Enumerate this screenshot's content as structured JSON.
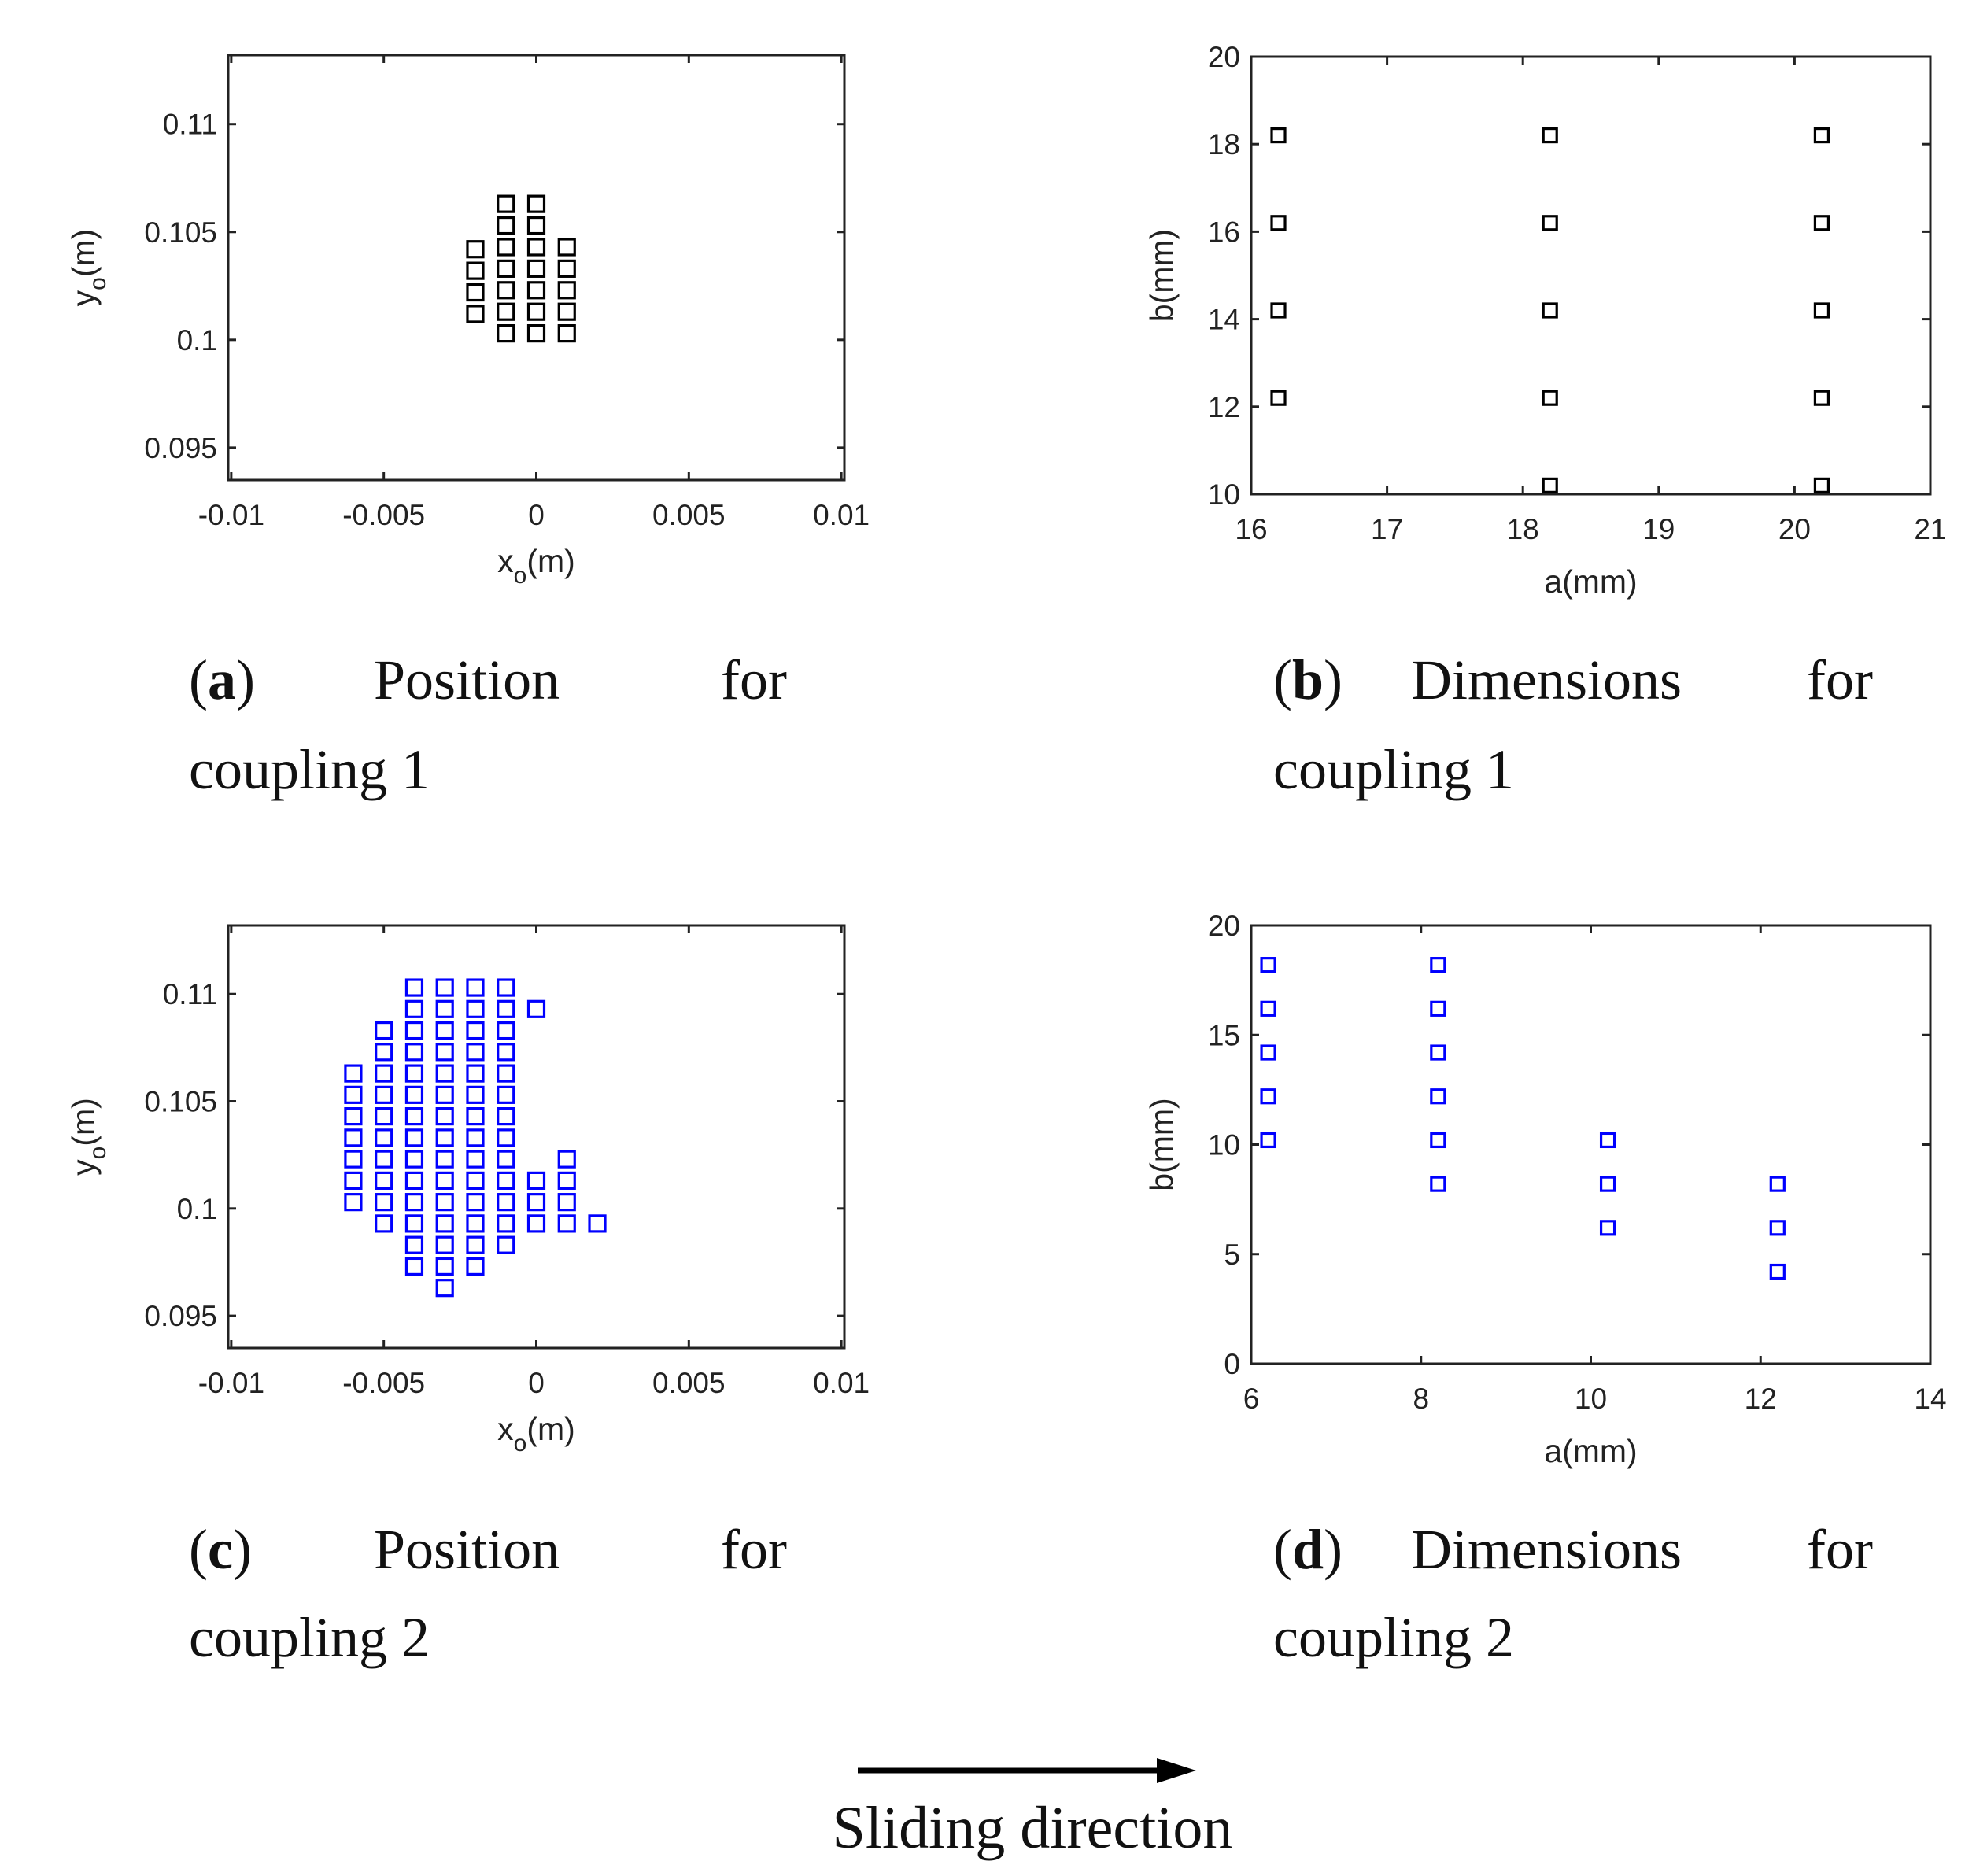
{
  "chart_data": [
    {
      "id": "a",
      "type": "scatter",
      "title": "",
      "xlabel": "x",
      "xlabel_sub": "o",
      "xlabel_unit": "(m)",
      "ylabel": "y",
      "ylabel_sub": "o",
      "ylabel_unit": "(m)",
      "xlim": [
        -0.0101,
        0.0101
      ],
      "ylim": [
        0.0935,
        0.1132
      ],
      "xticks": [
        -0.01,
        -0.005,
        0,
        0.005,
        0.01
      ],
      "xtick_labels": [
        "-0.01",
        "-0.005",
        "0",
        "0.005",
        "0.01"
      ],
      "yticks": [
        0.095,
        0.1,
        0.105,
        0.11
      ],
      "ytick_labels": [
        "0.095",
        "0.1",
        "0.105",
        "0.11"
      ],
      "marker": "square",
      "color": "#000000",
      "caption_label": "a",
      "caption_rest": "Position for coupling 1",
      "points": [
        [
          -0.002,
          0.1012
        ],
        [
          -0.002,
          0.1022
        ],
        [
          -0.002,
          0.1032
        ],
        [
          -0.002,
          0.1042
        ],
        [
          -0.001,
          0.1003
        ],
        [
          -0.001,
          0.1013
        ],
        [
          -0.001,
          0.1023
        ],
        [
          -0.001,
          0.1033
        ],
        [
          -0.001,
          0.1043
        ],
        [
          -0.001,
          0.1053
        ],
        [
          -0.001,
          0.1063
        ],
        [
          0.0,
          0.1003
        ],
        [
          0.0,
          0.1013
        ],
        [
          0.0,
          0.1023
        ],
        [
          0.0,
          0.1033
        ],
        [
          0.0,
          0.1043
        ],
        [
          0.0,
          0.1053
        ],
        [
          0.0,
          0.1063
        ],
        [
          0.001,
          0.1003
        ],
        [
          0.001,
          0.1013
        ],
        [
          0.001,
          0.1023
        ],
        [
          0.001,
          0.1033
        ],
        [
          0.001,
          0.1043
        ]
      ]
    },
    {
      "id": "b",
      "type": "scatter",
      "title": "",
      "xlabel": "a(mm)",
      "ylabel": "b(mm)",
      "xlim": [
        16,
        21
      ],
      "ylim": [
        10,
        20
      ],
      "xticks": [
        16,
        17,
        18,
        19,
        20,
        21
      ],
      "xtick_labels": [
        "16",
        "17",
        "18",
        "19",
        "20",
        "21"
      ],
      "yticks": [
        10,
        12,
        14,
        16,
        18,
        20
      ],
      "ytick_labels": [
        "10",
        "12",
        "14",
        "16",
        "18",
        "20"
      ],
      "marker": "square",
      "color": "#000000",
      "caption_label": "b",
      "caption_rest": "Dimensions for coupling 1",
      "points": [
        [
          16.2,
          12.2
        ],
        [
          16.2,
          14.2
        ],
        [
          16.2,
          16.2
        ],
        [
          16.2,
          18.2
        ],
        [
          18.2,
          10.2
        ],
        [
          18.2,
          12.2
        ],
        [
          18.2,
          14.2
        ],
        [
          18.2,
          16.2
        ],
        [
          18.2,
          18.2
        ],
        [
          20.2,
          10.2
        ],
        [
          20.2,
          12.2
        ],
        [
          20.2,
          14.2
        ],
        [
          20.2,
          16.2
        ],
        [
          20.2,
          18.2
        ]
      ]
    },
    {
      "id": "c",
      "type": "scatter",
      "title": "",
      "xlabel": "x",
      "xlabel_sub": "o",
      "xlabel_unit": "(m)",
      "ylabel": "y",
      "ylabel_sub": "o",
      "ylabel_unit": "(m)",
      "xlim": [
        -0.0101,
        0.0101
      ],
      "ylim": [
        0.0935,
        0.1132
      ],
      "xticks": [
        -0.01,
        -0.005,
        0,
        0.005,
        0.01
      ],
      "xtick_labels": [
        "-0.01",
        "-0.005",
        "0",
        "0.005",
        "0.01"
      ],
      "yticks": [
        0.095,
        0.1,
        0.105,
        0.11
      ],
      "ytick_labels": [
        "0.095",
        "0.1",
        "0.105",
        "0.11"
      ],
      "marker": "square",
      "color": "#0000ff",
      "caption_label": "c",
      "caption_rest": "Position for coupling 2",
      "points": [
        [
          -0.006,
          0.1003
        ],
        [
          -0.006,
          0.1013
        ],
        [
          -0.006,
          0.1023
        ],
        [
          -0.006,
          0.1033
        ],
        [
          -0.006,
          0.1043
        ],
        [
          -0.006,
          0.1053
        ],
        [
          -0.006,
          0.1063
        ],
        [
          -0.005,
          0.0993
        ],
        [
          -0.005,
          0.1003
        ],
        [
          -0.005,
          0.1013
        ],
        [
          -0.005,
          0.1023
        ],
        [
          -0.005,
          0.1033
        ],
        [
          -0.005,
          0.1043
        ],
        [
          -0.005,
          0.1053
        ],
        [
          -0.005,
          0.1063
        ],
        [
          -0.005,
          0.1073
        ],
        [
          -0.005,
          0.1083
        ],
        [
          -0.004,
          0.0973
        ],
        [
          -0.004,
          0.0983
        ],
        [
          -0.004,
          0.0993
        ],
        [
          -0.004,
          0.1003
        ],
        [
          -0.004,
          0.1013
        ],
        [
          -0.004,
          0.1023
        ],
        [
          -0.004,
          0.1033
        ],
        [
          -0.004,
          0.1043
        ],
        [
          -0.004,
          0.1053
        ],
        [
          -0.004,
          0.1063
        ],
        [
          -0.004,
          0.1073
        ],
        [
          -0.004,
          0.1083
        ],
        [
          -0.004,
          0.1093
        ],
        [
          -0.004,
          0.1103
        ],
        [
          -0.003,
          0.0963
        ],
        [
          -0.003,
          0.0973
        ],
        [
          -0.003,
          0.0983
        ],
        [
          -0.003,
          0.0993
        ],
        [
          -0.003,
          0.1003
        ],
        [
          -0.003,
          0.1013
        ],
        [
          -0.003,
          0.1023
        ],
        [
          -0.003,
          0.1033
        ],
        [
          -0.003,
          0.1043
        ],
        [
          -0.003,
          0.1053
        ],
        [
          -0.003,
          0.1063
        ],
        [
          -0.003,
          0.1073
        ],
        [
          -0.003,
          0.1083
        ],
        [
          -0.003,
          0.1093
        ],
        [
          -0.003,
          0.1103
        ],
        [
          -0.002,
          0.0973
        ],
        [
          -0.002,
          0.0983
        ],
        [
          -0.002,
          0.0993
        ],
        [
          -0.002,
          0.1003
        ],
        [
          -0.002,
          0.1013
        ],
        [
          -0.002,
          0.1023
        ],
        [
          -0.002,
          0.1033
        ],
        [
          -0.002,
          0.1043
        ],
        [
          -0.002,
          0.1053
        ],
        [
          -0.002,
          0.1063
        ],
        [
          -0.002,
          0.1073
        ],
        [
          -0.002,
          0.1083
        ],
        [
          -0.002,
          0.1093
        ],
        [
          -0.002,
          0.1103
        ],
        [
          -0.001,
          0.0983
        ],
        [
          -0.001,
          0.0993
        ],
        [
          -0.001,
          0.1003
        ],
        [
          -0.001,
          0.1013
        ],
        [
          -0.001,
          0.1023
        ],
        [
          -0.001,
          0.1033
        ],
        [
          -0.001,
          0.1043
        ],
        [
          -0.001,
          0.1053
        ],
        [
          -0.001,
          0.1063
        ],
        [
          -0.001,
          0.1073
        ],
        [
          -0.001,
          0.1083
        ],
        [
          -0.001,
          0.1093
        ],
        [
          -0.001,
          0.1103
        ],
        [
          0.0,
          0.0993
        ],
        [
          0.0,
          0.1003
        ],
        [
          0.0,
          0.1013
        ],
        [
          0.0,
          0.1093
        ],
        [
          0.001,
          0.0993
        ],
        [
          0.001,
          0.1003
        ],
        [
          0.001,
          0.1013
        ],
        [
          0.001,
          0.1023
        ],
        [
          0.002,
          0.0993
        ]
      ]
    },
    {
      "id": "d",
      "type": "scatter",
      "title": "",
      "xlabel": "a(mm)",
      "ylabel": "b(mm)",
      "xlim": [
        6,
        14
      ],
      "ylim": [
        0,
        20
      ],
      "xticks": [
        6,
        8,
        10,
        12,
        14
      ],
      "xtick_labels": [
        "6",
        "8",
        "10",
        "12",
        "14"
      ],
      "yticks": [
        0,
        5,
        10,
        15,
        20
      ],
      "ytick_labels": [
        "0",
        "5",
        "10",
        "15",
        "20"
      ],
      "marker": "square",
      "color": "#0000ff",
      "caption_label": "d",
      "caption_rest": "Dimensions for coupling 2",
      "points": [
        [
          6.2,
          10.2
        ],
        [
          6.2,
          12.2
        ],
        [
          6.2,
          14.2
        ],
        [
          6.2,
          16.2
        ],
        [
          6.2,
          18.2
        ],
        [
          8.2,
          8.2
        ],
        [
          8.2,
          10.2
        ],
        [
          8.2,
          12.2
        ],
        [
          8.2,
          14.2
        ],
        [
          8.2,
          16.2
        ],
        [
          8.2,
          18.2
        ],
        [
          10.2,
          6.2
        ],
        [
          10.2,
          8.2
        ],
        [
          10.2,
          10.2
        ],
        [
          12.2,
          4.2
        ],
        [
          12.2,
          6.2
        ],
        [
          12.2,
          8.2
        ]
      ]
    }
  ],
  "footer": {
    "label": "Sliding direction"
  }
}
